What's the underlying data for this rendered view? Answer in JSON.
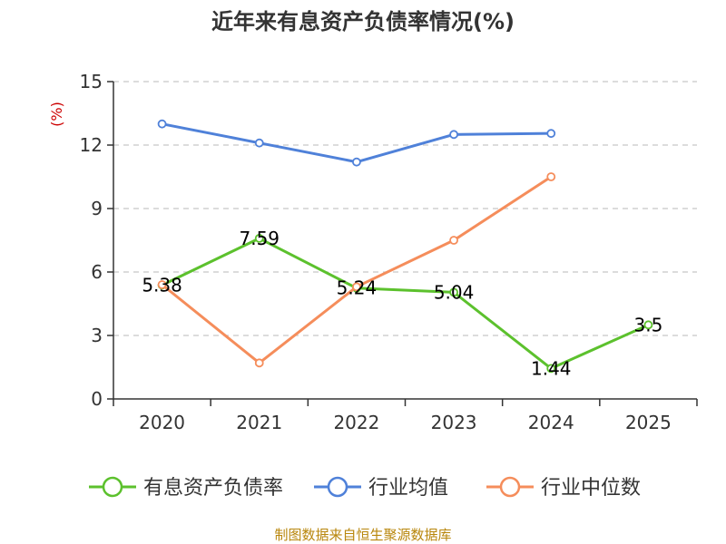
{
  "chart_data": {
    "type": "line",
    "title": "近年来有息资产负债率情况(%)",
    "ylabel": "(%)",
    "categories": [
      "2020",
      "2021",
      "2022",
      "2023",
      "2024",
      "2025"
    ],
    "ylim": [
      0,
      15
    ],
    "yticks": [
      0,
      3,
      6,
      9,
      12,
      15
    ],
    "grid": true,
    "legend_position": "bottom",
    "series": [
      {
        "name": "有息资产负债率",
        "color": "#5cc12d",
        "values": [
          5.38,
          7.59,
          5.24,
          5.04,
          1.44,
          3.5
        ],
        "labels": [
          "5.38",
          "7.59",
          "5.24",
          "5.04",
          "1.44",
          "3.5"
        ]
      },
      {
        "name": "行业均值",
        "color": "#4f81d9",
        "values": [
          13.0,
          12.1,
          11.2,
          12.5,
          12.55,
          null
        ]
      },
      {
        "name": "行业中位数",
        "color": "#f58d5b",
        "values": [
          5.4,
          1.7,
          5.3,
          7.5,
          10.5,
          null
        ]
      }
    ],
    "source": "制图数据来自恒生聚源数据库"
  }
}
